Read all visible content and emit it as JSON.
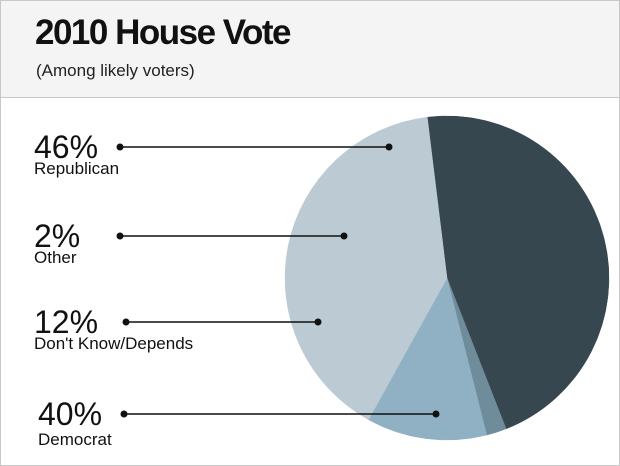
{
  "header": {
    "title": "2010 House Vote",
    "subtitle": "(Among likely voters)"
  },
  "chart_data": {
    "type": "pie",
    "title": "2010 House Vote",
    "subtitle": "(Among likely voters)",
    "slices": [
      {
        "label": "Republican",
        "value": 46,
        "value_label": "46%",
        "color": "#37474f"
      },
      {
        "label": "Other",
        "value": 2,
        "value_label": "2%",
        "color": "#6f8c9b"
      },
      {
        "label": "Don't Know/Depends",
        "value": 12,
        "value_label": "12%",
        "color": "#8fb1c3"
      },
      {
        "label": "Democrat",
        "value": 40,
        "value_label": "40%",
        "color": "#bccbd3"
      }
    ],
    "legend": "left"
  }
}
